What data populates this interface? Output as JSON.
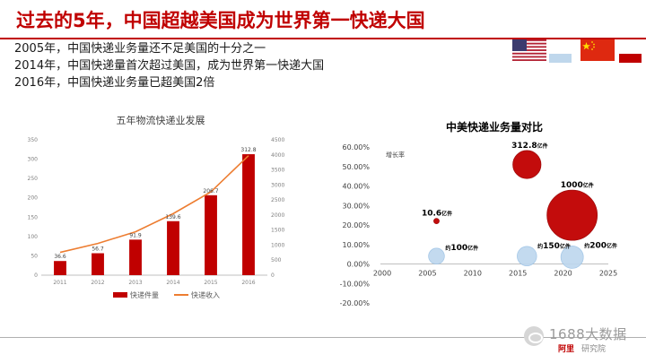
{
  "header": {
    "title": "过去的5年，中国超越美国成为世界第一快递大国"
  },
  "bullets": [
    "2005年，中国快递业务量还不足美国的十分之一",
    "2014年，中国快递量首次超过美国，成为世界第一快递大国",
    "2016年，中国快递业务量已超美国2倍"
  ],
  "flags": {
    "us_icon": "us-flag-icon",
    "cn_icon": "china-flag-icon"
  },
  "colors": {
    "accent": "#c00000",
    "line": "#ed7d31",
    "bubble_us": "#bdd7ee",
    "bubble_cn": "#c00000"
  },
  "watermark": {
    "text": "1688大数据",
    "logo": "阿里",
    "sub": "研究院"
  },
  "chart_data": [
    {
      "type": "bar",
      "title": "五年物流快递业发展",
      "categories": [
        "2011",
        "2012",
        "2013",
        "2014",
        "2015",
        "2016"
      ],
      "series": [
        {
          "name": "快递件量",
          "type": "bar",
          "axis": "left",
          "values": [
            36.6,
            56.7,
            91.9,
            139.6,
            206.7,
            312.8
          ],
          "labels": [
            "36.6",
            "56.7",
            "91.9",
            "139.6",
            "206.7",
            "312.8"
          ]
        },
        {
          "name": "快递收入",
          "type": "line",
          "axis": "right",
          "values": [
            758,
            1055,
            1442,
            2045,
            2770,
            3974
          ]
        }
      ],
      "ylim_left": [
        0,
        350
      ],
      "yticks_left": [
        "0",
        "50",
        "100",
        "150",
        "200",
        "250",
        "300",
        "350"
      ],
      "ylim_right": [
        0,
        4500
      ],
      "yticks_right": [
        "0",
        "500",
        "1000",
        "1500",
        "2000",
        "2500",
        "3000",
        "3500",
        "4000",
        "4500"
      ],
      "legend": "bottom",
      "grid": false
    },
    {
      "type": "scatter",
      "title": "中美快递业务量对比",
      "ylabel": "增长率",
      "xlim": [
        2000,
        2025
      ],
      "xticks": [
        "2000",
        "2005",
        "2010",
        "2015",
        "2020",
        "2025"
      ],
      "ylim": [
        -20,
        60
      ],
      "yticks": [
        "-20.00%",
        "-10.00%",
        "0.00%",
        "10.00%",
        "20.00%",
        "30.00%",
        "40.00%",
        "50.00%",
        "60.00%"
      ],
      "bubbles": [
        {
          "x": 2006,
          "y": 4,
          "size": 100,
          "country": "US",
          "label": "约100亿件"
        },
        {
          "x": 2016,
          "y": 4,
          "size": 150,
          "country": "US",
          "label": "约150亿件"
        },
        {
          "x": 2021,
          "y": 3.5,
          "size": 200,
          "country": "US",
          "label": "约200亿件"
        },
        {
          "x": 2006,
          "y": 22,
          "size": 10.6,
          "country": "CN",
          "label": "10.6亿件"
        },
        {
          "x": 2016,
          "y": 51,
          "size": 312.8,
          "country": "CN",
          "label": "312.8亿件"
        },
        {
          "x": 2021,
          "y": 25,
          "size": 1000,
          "country": "CN",
          "label": "1000亿件"
        }
      ]
    }
  ]
}
